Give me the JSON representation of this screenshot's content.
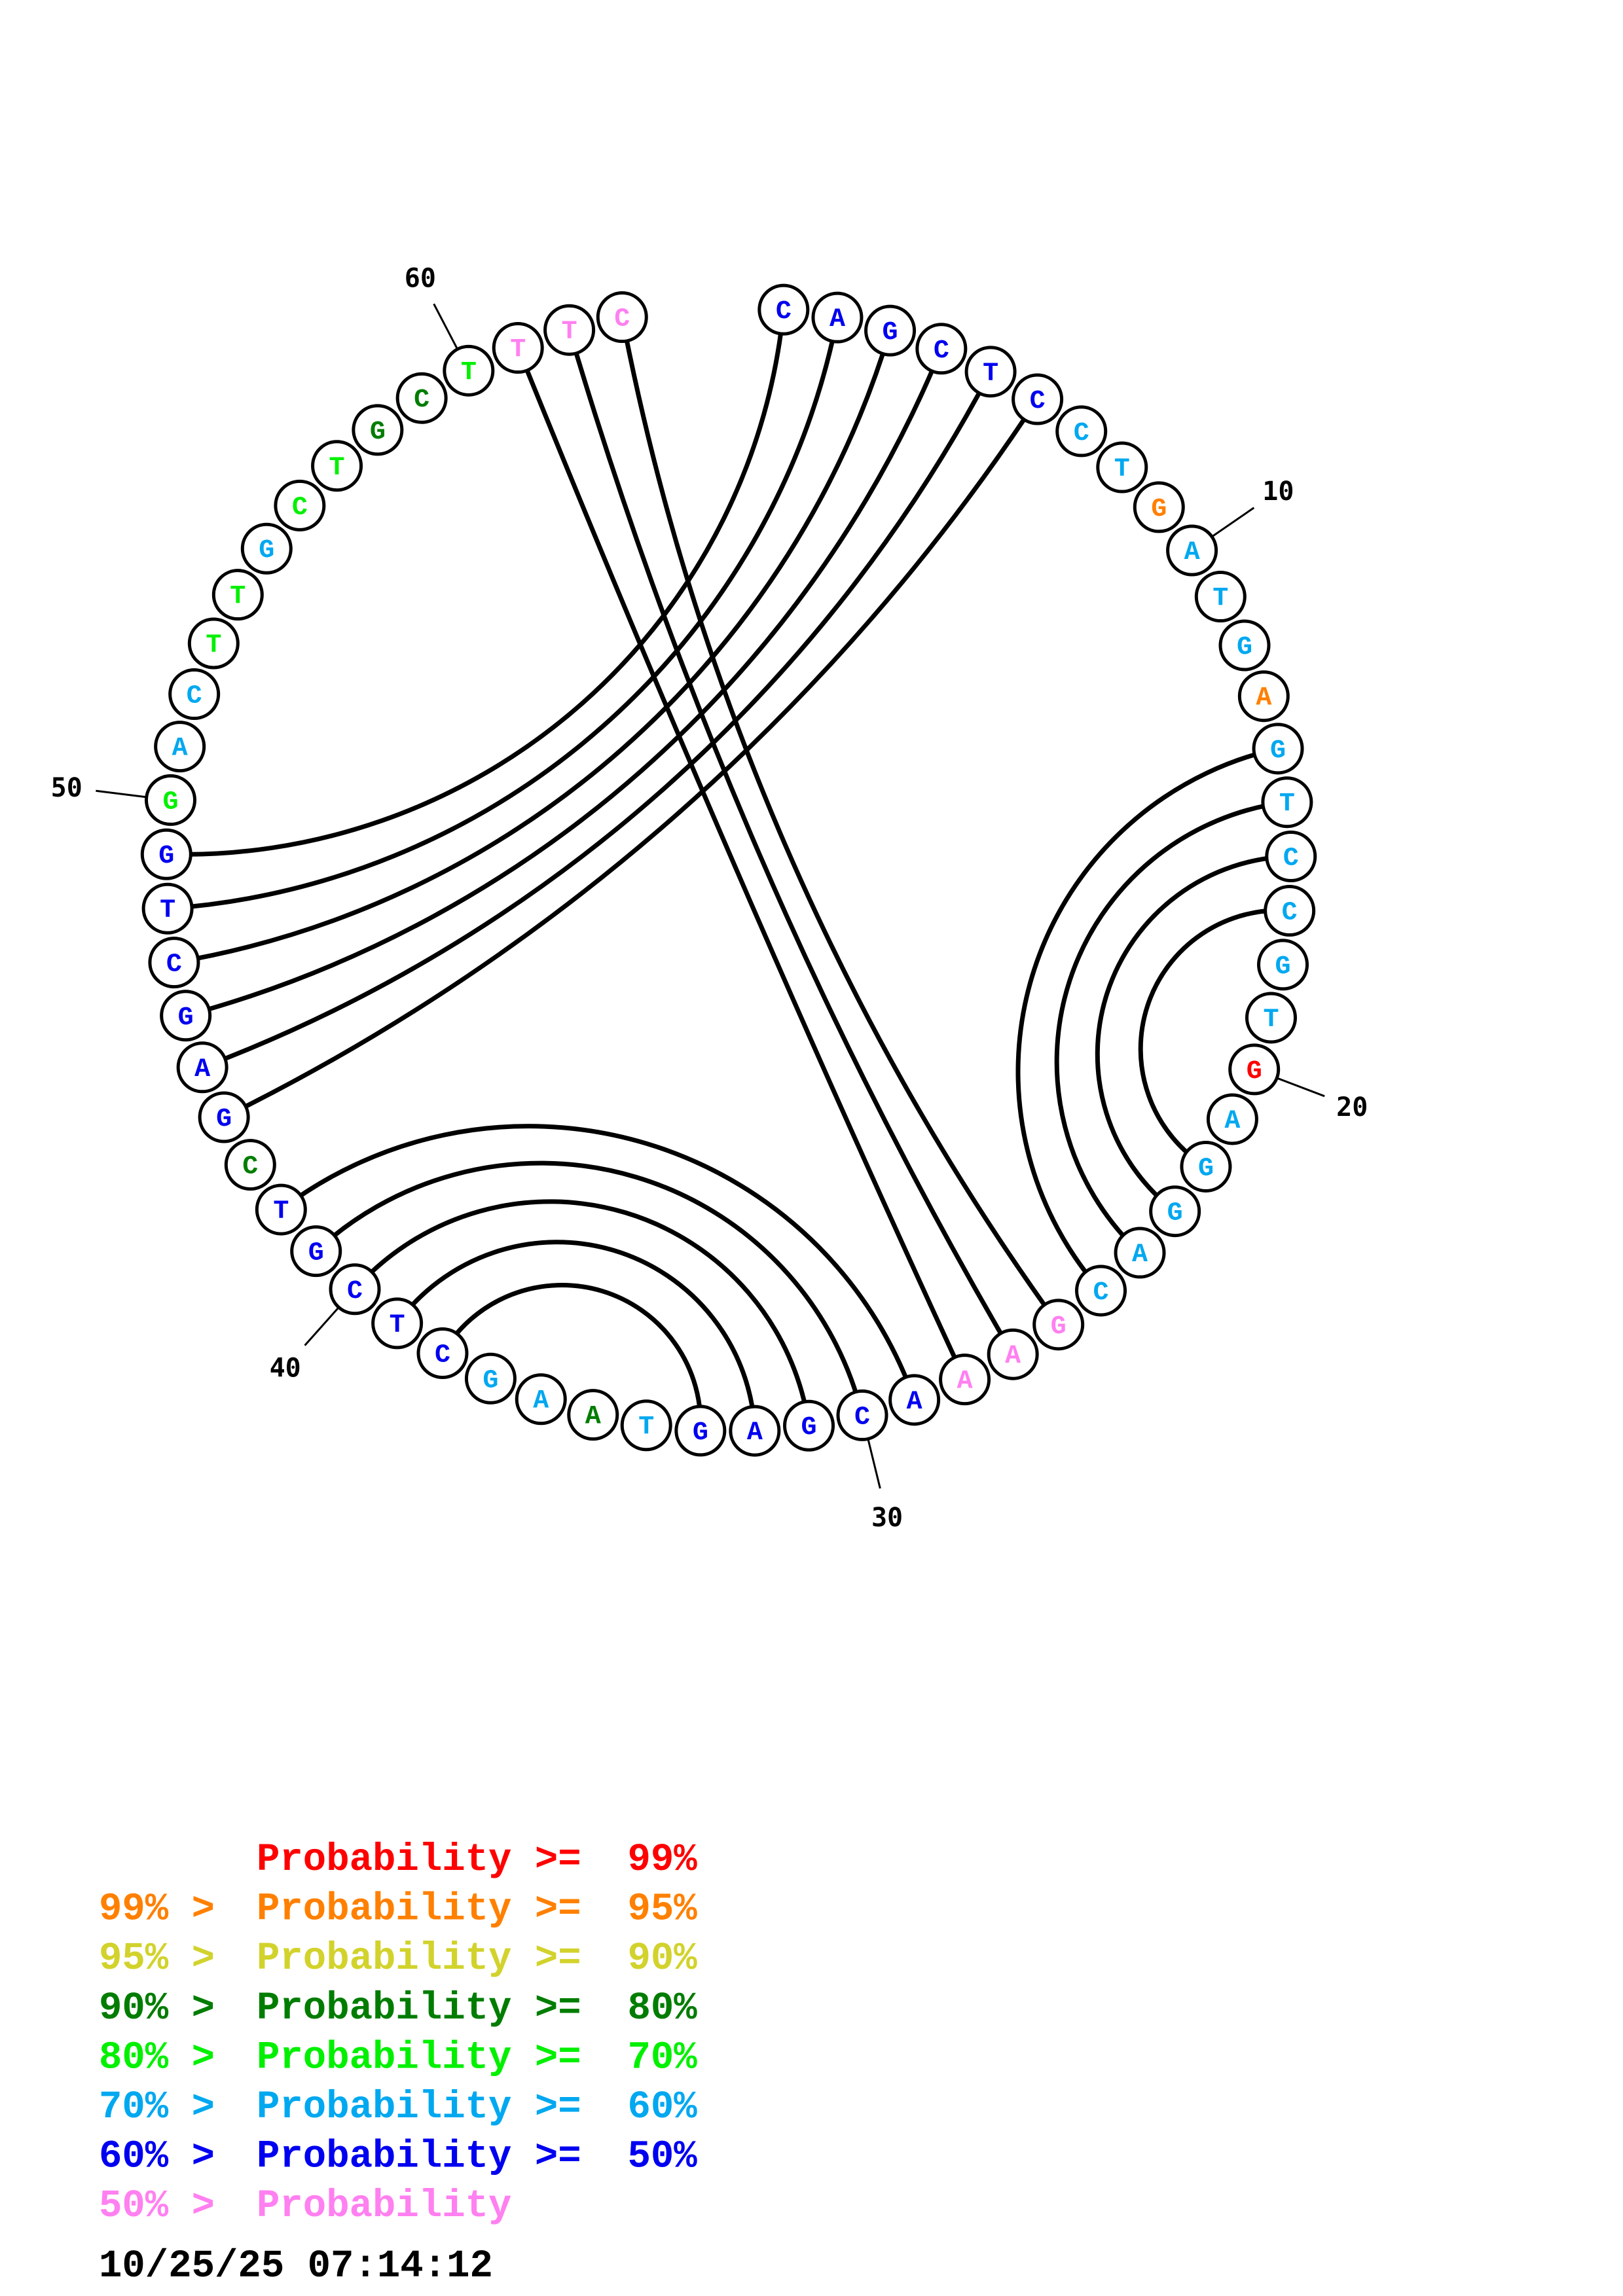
{
  "palette": {
    "R": "#ff0000",
    "O": "#ff8000",
    "Y": "#d2d22c",
    "D": "#007d00",
    "L": "#00f000",
    "S": "#00a8f0",
    "B": "#0000f0",
    "P": "#ff80f0"
  },
  "sequence": [
    {
      "base": "C",
      "color": "B"
    },
    {
      "base": "A",
      "color": "B"
    },
    {
      "base": "G",
      "color": "B"
    },
    {
      "base": "C",
      "color": "B"
    },
    {
      "base": "T",
      "color": "B"
    },
    {
      "base": "C",
      "color": "B"
    },
    {
      "base": "C",
      "color": "S"
    },
    {
      "base": "T",
      "color": "S"
    },
    {
      "base": "G",
      "color": "O"
    },
    {
      "base": "A",
      "color": "S"
    },
    {
      "base": "T",
      "color": "S"
    },
    {
      "base": "G",
      "color": "S"
    },
    {
      "base": "A",
      "color": "O"
    },
    {
      "base": "G",
      "color": "S"
    },
    {
      "base": "T",
      "color": "S"
    },
    {
      "base": "C",
      "color": "S"
    },
    {
      "base": "C",
      "color": "S"
    },
    {
      "base": "G",
      "color": "S"
    },
    {
      "base": "T",
      "color": "S"
    },
    {
      "base": "G",
      "color": "R"
    },
    {
      "base": "A",
      "color": "S"
    },
    {
      "base": "G",
      "color": "S"
    },
    {
      "base": "G",
      "color": "S"
    },
    {
      "base": "A",
      "color": "S"
    },
    {
      "base": "C",
      "color": "S"
    },
    {
      "base": "G",
      "color": "P"
    },
    {
      "base": "A",
      "color": "P"
    },
    {
      "base": "A",
      "color": "P"
    },
    {
      "base": "A",
      "color": "B"
    },
    {
      "base": "C",
      "color": "B"
    },
    {
      "base": "G",
      "color": "B"
    },
    {
      "base": "A",
      "color": "B"
    },
    {
      "base": "G",
      "color": "B"
    },
    {
      "base": "T",
      "color": "S"
    },
    {
      "base": "A",
      "color": "D"
    },
    {
      "base": "A",
      "color": "S"
    },
    {
      "base": "G",
      "color": "S"
    },
    {
      "base": "C",
      "color": "B"
    },
    {
      "base": "T",
      "color": "B"
    },
    {
      "base": "C",
      "color": "B"
    },
    {
      "base": "G",
      "color": "B"
    },
    {
      "base": "T",
      "color": "B"
    },
    {
      "base": "C",
      "color": "D"
    },
    {
      "base": "G",
      "color": "B"
    },
    {
      "base": "A",
      "color": "B"
    },
    {
      "base": "G",
      "color": "B"
    },
    {
      "base": "C",
      "color": "B"
    },
    {
      "base": "T",
      "color": "B"
    },
    {
      "base": "G",
      "color": "B"
    },
    {
      "base": "G",
      "color": "L"
    },
    {
      "base": "A",
      "color": "S"
    },
    {
      "base": "C",
      "color": "S"
    },
    {
      "base": "T",
      "color": "L"
    },
    {
      "base": "T",
      "color": "L"
    },
    {
      "base": "G",
      "color": "S"
    },
    {
      "base": "C",
      "color": "L"
    },
    {
      "base": "T",
      "color": "L"
    },
    {
      "base": "G",
      "color": "D"
    },
    {
      "base": "C",
      "color": "D"
    },
    {
      "base": "T",
      "color": "L"
    },
    {
      "base": "T",
      "color": "P"
    },
    {
      "base": "T",
      "color": "P"
    },
    {
      "base": "C",
      "color": "P"
    }
  ],
  "pairs": [
    [
      1,
      49
    ],
    [
      2,
      48
    ],
    [
      3,
      47
    ],
    [
      4,
      46
    ],
    [
      5,
      45
    ],
    [
      6,
      44
    ],
    [
      14,
      25
    ],
    [
      15,
      24
    ],
    [
      16,
      23
    ],
    [
      17,
      22
    ],
    [
      26,
      63
    ],
    [
      27,
      62
    ],
    [
      28,
      61
    ],
    [
      29,
      42
    ],
    [
      30,
      41
    ],
    [
      31,
      40
    ],
    [
      32,
      39
    ],
    [
      33,
      38
    ]
  ],
  "ticks": [
    {
      "position": 10,
      "label": "10"
    },
    {
      "position": 20,
      "label": "20"
    },
    {
      "position": 30,
      "label": "30"
    },
    {
      "position": 40,
      "label": "40"
    },
    {
      "position": 50,
      "label": "50"
    },
    {
      "position": 60,
      "label": "60"
    }
  ],
  "legend": [
    {
      "prefix": "",
      "text": "Probability >=  99%",
      "color": "R"
    },
    {
      "prefix": "99% >",
      "text": "Probability >=  95%",
      "color": "O"
    },
    {
      "prefix": "95% >",
      "text": "Probability >=  90%",
      "color": "Y"
    },
    {
      "prefix": "90% >",
      "text": "Probability >=  80%",
      "color": "D"
    },
    {
      "prefix": "80% >",
      "text": "Probability >=  70%",
      "color": "L"
    },
    {
      "prefix": "70% >",
      "text": "Probability >=  60%",
      "color": "S"
    },
    {
      "prefix": "60% >",
      "text": "Probability >=  50%",
      "color": "B"
    },
    {
      "prefix": "50% >",
      "text": "Probability",
      "color": "P"
    }
  ],
  "timestamp": "10/25/25 07:14:12"
}
